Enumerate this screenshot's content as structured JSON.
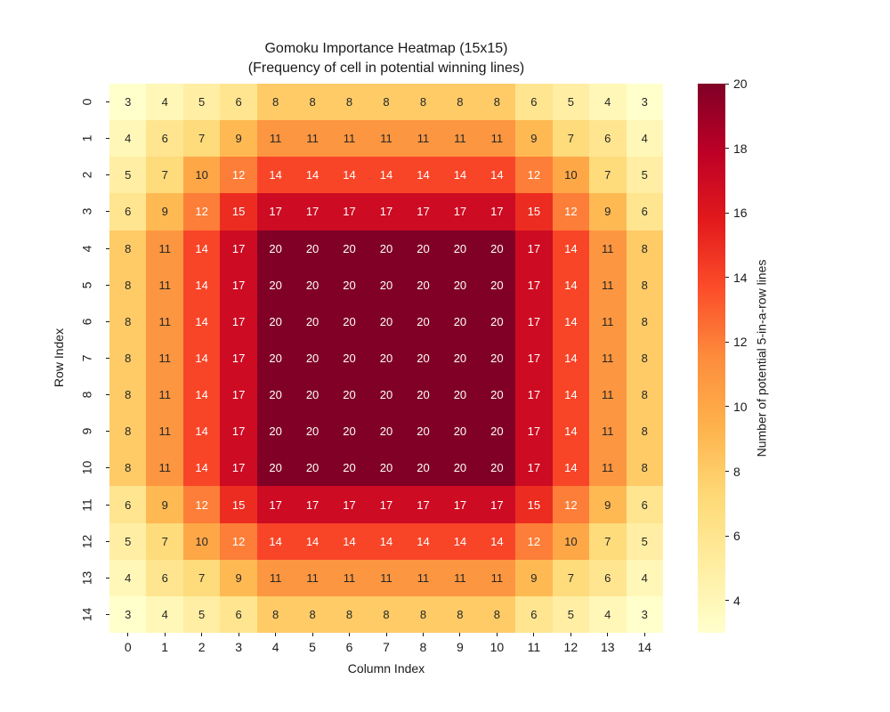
{
  "chart_data": {
    "type": "heatmap",
    "title": "Gomoku Importance Heatmap (15x15)",
    "subtitle": "(Frequency of cell in potential winning lines)",
    "xlabel": "Column Index",
    "ylabel": "Row Index",
    "x_ticklabels": [
      "0",
      "1",
      "2",
      "3",
      "4",
      "5",
      "6",
      "7",
      "8",
      "9",
      "10",
      "11",
      "12",
      "13",
      "14"
    ],
    "y_ticklabels": [
      "0",
      "1",
      "2",
      "3",
      "4",
      "5",
      "6",
      "7",
      "8",
      "9",
      "10",
      "11",
      "12",
      "13",
      "14"
    ],
    "values": [
      [
        3,
        4,
        5,
        6,
        8,
        8,
        8,
        8,
        8,
        8,
        8,
        6,
        5,
        4,
        3
      ],
      [
        4,
        6,
        7,
        9,
        11,
        11,
        11,
        11,
        11,
        11,
        11,
        9,
        7,
        6,
        4
      ],
      [
        5,
        7,
        10,
        12,
        14,
        14,
        14,
        14,
        14,
        14,
        14,
        12,
        10,
        7,
        5
      ],
      [
        6,
        9,
        12,
        15,
        17,
        17,
        17,
        17,
        17,
        17,
        17,
        15,
        12,
        9,
        6
      ],
      [
        8,
        11,
        14,
        17,
        20,
        20,
        20,
        20,
        20,
        20,
        20,
        17,
        14,
        11,
        8
      ],
      [
        8,
        11,
        14,
        17,
        20,
        20,
        20,
        20,
        20,
        20,
        20,
        17,
        14,
        11,
        8
      ],
      [
        8,
        11,
        14,
        17,
        20,
        20,
        20,
        20,
        20,
        20,
        20,
        17,
        14,
        11,
        8
      ],
      [
        8,
        11,
        14,
        17,
        20,
        20,
        20,
        20,
        20,
        20,
        20,
        17,
        14,
        11,
        8
      ],
      [
        8,
        11,
        14,
        17,
        20,
        20,
        20,
        20,
        20,
        20,
        20,
        17,
        14,
        11,
        8
      ],
      [
        8,
        11,
        14,
        17,
        20,
        20,
        20,
        20,
        20,
        20,
        20,
        17,
        14,
        11,
        8
      ],
      [
        8,
        11,
        14,
        17,
        20,
        20,
        20,
        20,
        20,
        20,
        20,
        17,
        14,
        11,
        8
      ],
      [
        6,
        9,
        12,
        15,
        17,
        17,
        17,
        17,
        17,
        17,
        17,
        15,
        12,
        9,
        6
      ],
      [
        5,
        7,
        10,
        12,
        14,
        14,
        14,
        14,
        14,
        14,
        14,
        12,
        10,
        7,
        5
      ],
      [
        4,
        6,
        7,
        9,
        11,
        11,
        11,
        11,
        11,
        11,
        11,
        9,
        7,
        6,
        4
      ],
      [
        3,
        4,
        5,
        6,
        8,
        8,
        8,
        8,
        8,
        8,
        8,
        6,
        5,
        4,
        3
      ]
    ],
    "vmin": 3,
    "vmax": 20,
    "annotated": true,
    "grid": false,
    "colormap_name": "YlOrRd",
    "colormap_stops": [
      "#ffffcc",
      "#ffeda0",
      "#fed976",
      "#feb24c",
      "#fd8d3c",
      "#fc4e2a",
      "#e31a1c",
      "#bd0026",
      "#800026"
    ],
    "annotation_text_colors": {
      "dark": "#262626",
      "light": "#ffffff"
    },
    "colorbar": {
      "label": "Number of potential 5-in-a-row lines",
      "ticks": [
        4,
        6,
        8,
        10,
        12,
        14,
        16,
        18,
        20
      ],
      "position": "right"
    }
  }
}
